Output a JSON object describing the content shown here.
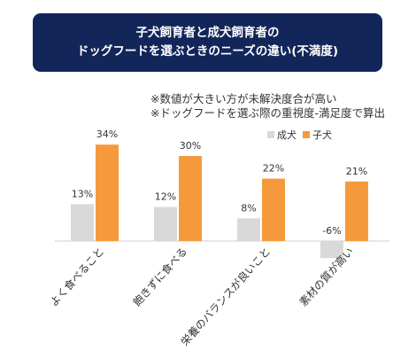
{
  "title_lines": [
    "子犬飼育者と成犬飼育者の",
    "ドッグフードを選ぶときのニーズの違い(不満度)"
  ],
  "notes": [
    "※数値が大きい方が未解決度合が高い",
    "※ドッグフードを選ぶ際の重視度-満足度で算出"
  ],
  "colors": {
    "title_bg": "#13265a",
    "adult": "#d9d9d9",
    "puppy": "#f59a3c"
  },
  "chart_data": {
    "type": "bar",
    "categories": [
      "よく食べること",
      "飽きずに食べる",
      "栄養のバランスが良いこと",
      "素材の質が高い"
    ],
    "series": [
      {
        "name": "成犬",
        "values": [
          13,
          12,
          8,
          -6
        ],
        "labels": [
          "13%",
          "12%",
          "8%",
          "-6%"
        ]
      },
      {
        "name": "子犬",
        "values": [
          34,
          30,
          22,
          21
        ],
        "labels": [
          "34%",
          "30%",
          "22%",
          "21%"
        ]
      }
    ],
    "legend_position": "top-right",
    "grid": false
  }
}
